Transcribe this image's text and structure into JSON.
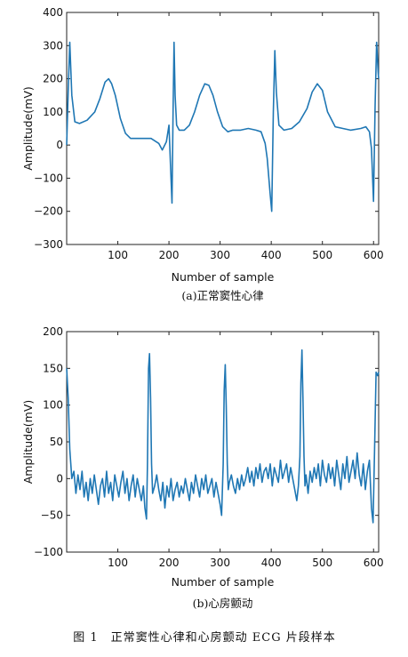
{
  "figure_caption": "图 1　正常窦性心律和心房颤动 ECG 片段样本",
  "chart_data": [
    {
      "type": "line",
      "subtitle": "(a)正常窦性心律",
      "xlabel": "Number of sample",
      "ylabel": "Amplitude(mV)",
      "xlim": [
        0,
        610
      ],
      "ylim": [
        -300,
        400
      ],
      "xticks": [
        100,
        200,
        300,
        400,
        500,
        600
      ],
      "yticks": [
        -300,
        -200,
        -100,
        0,
        100,
        200,
        300,
        400
      ],
      "grid": false,
      "color": "#1f77b4",
      "x": [
        0,
        3,
        6,
        10,
        16,
        25,
        40,
        55,
        65,
        75,
        82,
        88,
        95,
        105,
        115,
        125,
        135,
        150,
        165,
        180,
        187,
        195,
        200,
        203,
        206,
        208,
        210,
        212,
        215,
        220,
        230,
        240,
        250,
        260,
        270,
        278,
        286,
        295,
        305,
        315,
        325,
        340,
        355,
        370,
        380,
        388,
        392,
        398,
        401,
        404,
        407,
        410,
        415,
        425,
        440,
        455,
        470,
        480,
        490,
        500,
        510,
        525,
        540,
        555,
        575,
        585,
        592,
        596,
        600,
        603,
        606,
        609,
        610
      ],
      "y": [
        0,
        160,
        310,
        150,
        70,
        65,
        75,
        100,
        140,
        190,
        200,
        185,
        150,
        80,
        35,
        20,
        20,
        20,
        20,
        5,
        -15,
        10,
        60,
        -60,
        -175,
        100,
        310,
        150,
        60,
        45,
        45,
        60,
        100,
        150,
        185,
        180,
        150,
        100,
        55,
        40,
        45,
        45,
        50,
        45,
        40,
        5,
        -40,
        -150,
        -200,
        100,
        285,
        160,
        60,
        45,
        50,
        70,
        110,
        160,
        185,
        165,
        100,
        55,
        50,
        45,
        50,
        55,
        40,
        -10,
        -170,
        120,
        310,
        220,
        200
      ]
    },
    {
      "type": "line",
      "subtitle": "(b)心房颤动",
      "xlabel": "Number of sample",
      "ylabel": "Amplitude(mV)",
      "xlim": [
        0,
        610
      ],
      "ylim": [
        -100,
        200
      ],
      "xticks": [
        100,
        200,
        300,
        400,
        500,
        600
      ],
      "yticks": [
        -100,
        -50,
        0,
        50,
        100,
        150,
        200
      ],
      "grid": false,
      "color": "#1f77b4",
      "x": [
        0,
        3,
        6,
        10,
        14,
        18,
        22,
        26,
        30,
        34,
        38,
        42,
        46,
        50,
        54,
        58,
        62,
        66,
        70,
        74,
        78,
        82,
        86,
        90,
        94,
        98,
        102,
        106,
        110,
        114,
        118,
        122,
        126,
        130,
        134,
        138,
        142,
        146,
        150,
        153,
        156,
        158,
        160,
        162,
        164,
        166,
        168,
        172,
        176,
        180,
        184,
        188,
        192,
        196,
        200,
        204,
        208,
        212,
        216,
        220,
        224,
        228,
        232,
        236,
        240,
        244,
        248,
        252,
        256,
        260,
        264,
        268,
        272,
        276,
        280,
        284,
        288,
        292,
        296,
        300,
        303,
        306,
        308,
        310,
        312,
        314,
        316,
        318,
        322,
        326,
        330,
        334,
        338,
        342,
        346,
        350,
        354,
        358,
        362,
        366,
        370,
        374,
        378,
        382,
        386,
        390,
        394,
        398,
        402,
        406,
        410,
        414,
        418,
        422,
        426,
        430,
        434,
        438,
        442,
        446,
        450,
        453,
        456,
        458,
        460,
        462,
        464,
        466,
        468,
        472,
        476,
        480,
        484,
        488,
        492,
        496,
        500,
        504,
        508,
        512,
        516,
        520,
        524,
        528,
        532,
        536,
        540,
        544,
        548,
        552,
        556,
        560,
        564,
        568,
        572,
        576,
        580,
        584,
        588,
        592,
        596,
        599,
        602,
        605,
        608,
        610
      ],
      "y": [
        150,
        110,
        40,
        0,
        10,
        -20,
        5,
        -15,
        10,
        -25,
        -5,
        -30,
        0,
        -20,
        5,
        -15,
        -35,
        -10,
        0,
        -25,
        10,
        -20,
        -5,
        -30,
        5,
        -10,
        -25,
        -5,
        10,
        -20,
        0,
        -30,
        -10,
        5,
        -25,
        0,
        -15,
        -30,
        -10,
        -40,
        -55,
        20,
        150,
        170,
        110,
        20,
        -20,
        -10,
        5,
        -15,
        -30,
        -5,
        -40,
        -10,
        -25,
        0,
        -30,
        -15,
        -5,
        -25,
        -10,
        -20,
        0,
        -15,
        -30,
        -5,
        -20,
        5,
        -10,
        -25,
        0,
        -15,
        5,
        -20,
        -10,
        0,
        -25,
        -5,
        -20,
        -35,
        -50,
        20,
        120,
        155,
        100,
        20,
        -15,
        -5,
        5,
        -10,
        -20,
        0,
        -15,
        5,
        -10,
        0,
        15,
        -5,
        10,
        -10,
        15,
        0,
        20,
        -5,
        10,
        15,
        0,
        20,
        -10,
        15,
        5,
        -5,
        25,
        0,
        10,
        20,
        -5,
        15,
        0,
        -15,
        -30,
        -10,
        30,
        130,
        175,
        110,
        30,
        -10,
        5,
        -20,
        10,
        -5,
        15,
        0,
        20,
        -10,
        25,
        5,
        -5,
        20,
        0,
        15,
        -10,
        25,
        5,
        -15,
        20,
        0,
        30,
        -5,
        10,
        25,
        0,
        35,
        5,
        -10,
        20,
        -15,
        10,
        25,
        -40,
        -60,
        40,
        145,
        140,
        145
      ]
    }
  ]
}
